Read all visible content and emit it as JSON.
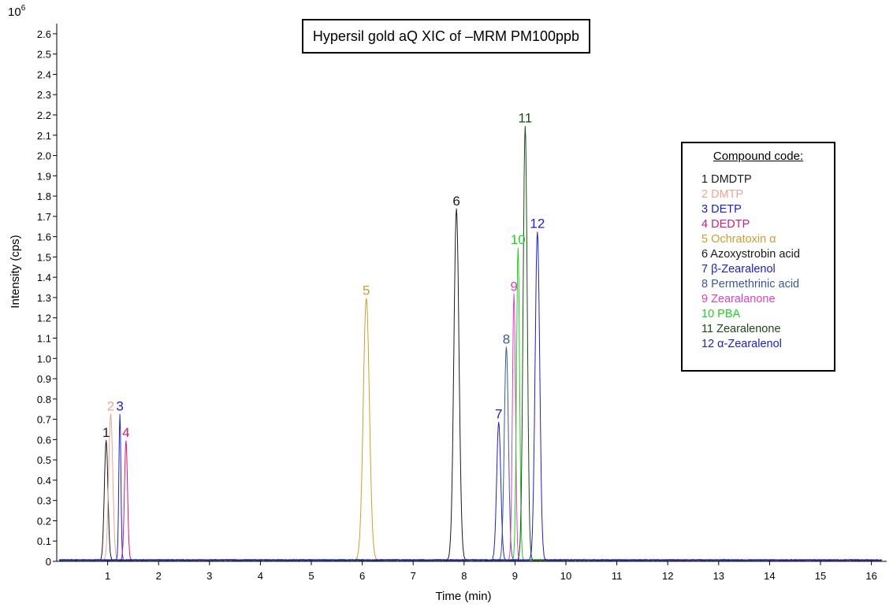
{
  "chart_data": {
    "type": "line",
    "title": "Hypersil gold aQ XIC of –MRM PM100ppb",
    "xlabel": "Time (min)",
    "ylabel": "Intensity (cps)",
    "y_multiplier_label": "10",
    "y_multiplier_exponent": "6",
    "xlim": [
      0,
      16.3
    ],
    "ylim": [
      0,
      2.65
    ],
    "x_ticks": [
      "1",
      "2",
      "3",
      "4",
      "5",
      "6",
      "7",
      "8",
      "9",
      "10",
      "11",
      "12",
      "13",
      "14",
      "15",
      "16"
    ],
    "y_ticks": [
      "0",
      "0.1",
      "0.2",
      "0.3",
      "0.4",
      "0.5",
      "0.6",
      "0.7",
      "0.8",
      "0.9",
      "1.0",
      "1.1",
      "1.2",
      "1.3",
      "1.4",
      "1.5",
      "1.6",
      "1.7",
      "1.8",
      "1.9",
      "2.0",
      "2.1",
      "2.2",
      "2.3",
      "2.4",
      "2.5",
      "2.6"
    ],
    "legend_title": "Compound code:",
    "legend_position": "right",
    "series": [
      {
        "name": "1 DMDTP",
        "label": "1",
        "color": "#1a1a1a",
        "peak_time": 0.97,
        "peak_height": 0.59,
        "width": 0.035
      },
      {
        "name": "2 DMTP",
        "label": "2",
        "color": "#e8a598",
        "peak_time": 1.06,
        "peak_height": 0.72,
        "width": 0.04
      },
      {
        "name": "3 DETP",
        "label": "3",
        "color": "#2020c0",
        "peak_time": 1.24,
        "peak_height": 0.72,
        "width": 0.02
      },
      {
        "name": "4 DEDTP",
        "label": "4",
        "color": "#d01a7a",
        "peak_time": 1.36,
        "peak_height": 0.59,
        "width": 0.03
      },
      {
        "name": "5 Ochratoxin α",
        "label": "5",
        "color": "#c8a030",
        "peak_time": 6.08,
        "peak_height": 1.29,
        "width": 0.06
      },
      {
        "name": "6 Azoxystrobin acid",
        "label": "6",
        "color": "#1a1a1a",
        "peak_time": 7.85,
        "peak_height": 1.73,
        "width": 0.05
      },
      {
        "name": "7 β-Zearalenol",
        "label": "7",
        "color": "#2020c0",
        "peak_time": 8.68,
        "peak_height": 0.68,
        "width": 0.04
      },
      {
        "name": "8 Permethrinic acid",
        "label": "8",
        "color": "#3a5a8a",
        "peak_time": 8.83,
        "peak_height": 1.05,
        "width": 0.04
      },
      {
        "name": "9 Zearalanone",
        "label": "9",
        "color": "#e040c0",
        "peak_time": 8.98,
        "peak_height": 1.31,
        "width": 0.03
      },
      {
        "name": "10 PBA",
        "label": "10",
        "color": "#20d020",
        "peak_time": 9.06,
        "peak_height": 1.54,
        "width": 0.03
      },
      {
        "name": "11 Zearalenone",
        "label": "11",
        "color": "#1a4a1a",
        "peak_time": 9.2,
        "peak_height": 2.14,
        "width": 0.04
      },
      {
        "name": "12 α-Zearalenol",
        "label": "12",
        "color": "#2020c0",
        "peak_time": 9.44,
        "peak_height": 1.62,
        "width": 0.045
      }
    ]
  }
}
